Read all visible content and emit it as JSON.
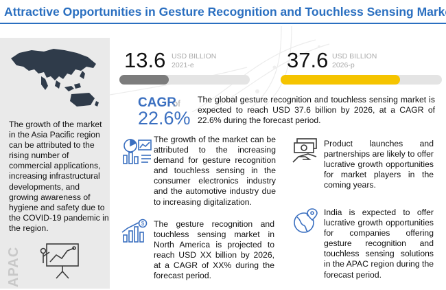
{
  "title": "Attractive Opportunities in Gesture Recognition and Touchless Sensing Market",
  "colors": {
    "accent_blue": "#2a6fc0",
    "bar_gray": "#7c7c7c",
    "bar_yellow": "#f5c400",
    "panel_gray": "#eaeaea"
  },
  "left_panel": {
    "text": "The growth of the market in the Asia Pacific region can be attributed to the rising number of commercial applications, increasing infrastructural developments, and growing awareness of hygiene and safety due to the COVID-19 pandemic in the region.",
    "region_label": "APAC",
    "map_icon": "asia-pacific-map",
    "presentation_icon": "presentation-board-icon"
  },
  "stats": {
    "left": {
      "value": "13.6",
      "unit": "USD BILLION",
      "year": "2021-e",
      "bar_fraction": 0.38
    },
    "right": {
      "value": "37.6",
      "unit": "USD BILLION",
      "year": "2026-p",
      "bar_fraction": 0.74
    }
  },
  "cagr": {
    "label": "CAGR",
    "of_text": "of",
    "value": "22.6%",
    "description": "The global gesture recognition and touchless sensing market is expected to reach USD 37.6 billion by 2026, at a CAGR of 22.6% during the forecast period."
  },
  "cards": [
    {
      "icon": "analytics-icon",
      "text": "The growth of the market can be attributed to the increasing demand for gesture recognition and touchless sensing in the consumer electronics industry and the automotive industry due to increasing digitalization."
    },
    {
      "icon": "money-hand-icon",
      "text": "Product launches and partnerships are likely to offer lucrative growth opportunities for market players in the coming years."
    },
    {
      "icon": "growth-chart-dollar-icon",
      "text": "The gesture recognition and touchless sensing market in North America is projected to reach USD XX billion by 2026, at a CAGR of XX% during the forecast period."
    },
    {
      "icon": "globe-location-icon",
      "text": "India is expected to offer lucrative growth opportunities for companies offering gesture recognition and touchless sensing solutions in the APAC region during the forecast period."
    }
  ]
}
